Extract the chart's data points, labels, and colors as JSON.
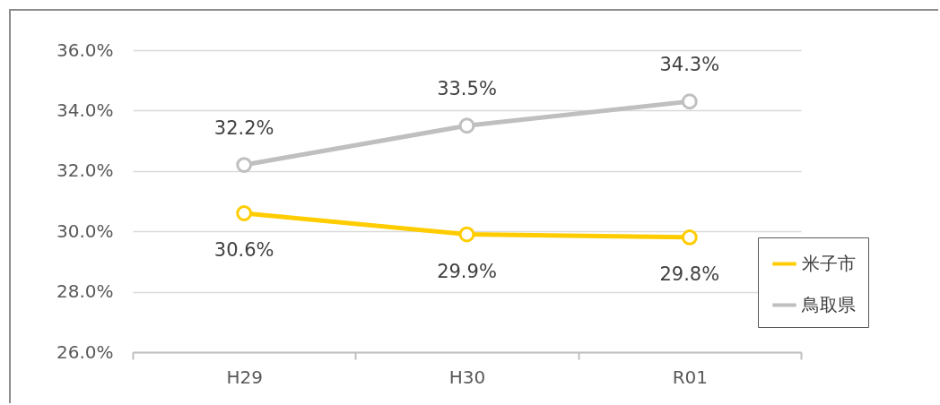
{
  "chart_data": {
    "type": "line",
    "categories": [
      "H29",
      "H30",
      "R01"
    ],
    "series": [
      {
        "name": "米子市",
        "color": "#ffcc00",
        "values": [
          30.6,
          29.9,
          29.8
        ],
        "value_labels": [
          "30.6%",
          "29.9%",
          "29.8%"
        ]
      },
      {
        "name": "鳥取県",
        "color": "#bfbfbf",
        "values": [
          32.2,
          33.5,
          34.3
        ],
        "value_labels": [
          "32.2%",
          "33.5%",
          "34.3%"
        ]
      }
    ],
    "ylim": [
      26,
      36
    ],
    "yticks": [
      {
        "value": 26,
        "label": "26.0%"
      },
      {
        "value": 28,
        "label": "28.0%"
      },
      {
        "value": 30,
        "label": "30.0%"
      },
      {
        "value": 32,
        "label": "32.0%"
      },
      {
        "value": 34,
        "label": "34.0%"
      },
      {
        "value": 36,
        "label": "36.0%"
      }
    ],
    "grid": "y",
    "legend": "right",
    "marker": "circle",
    "line_style": "solid"
  }
}
